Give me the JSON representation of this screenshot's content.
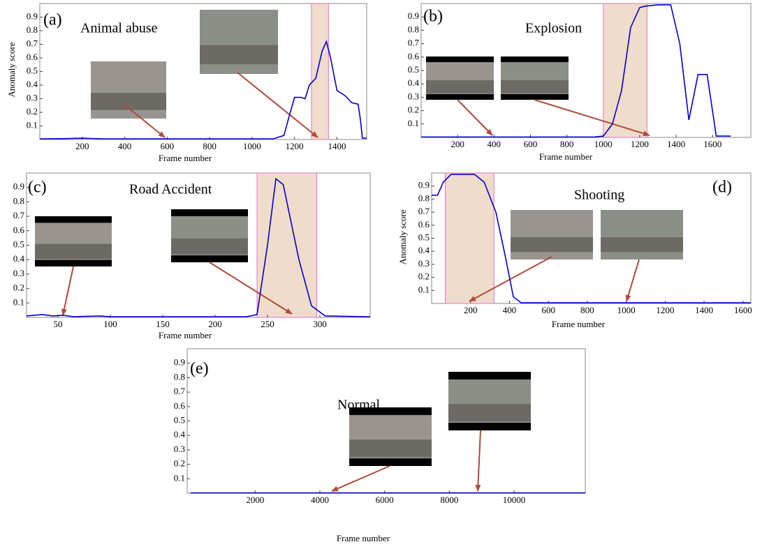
{
  "chart_data": [
    {
      "type": "line",
      "panel_label": "(a)",
      "title": "Animal abuse",
      "xlabel": "Frame number",
      "ylabel": "Anomaly score",
      "color": "#0000cc",
      "shade_color": "#f0dccb",
      "shade_edge": "#e070d0",
      "shaded_range": [
        1280,
        1360
      ],
      "x": [
        0,
        100,
        200,
        300,
        1100,
        1150,
        1180,
        1200,
        1230,
        1250,
        1270,
        1300,
        1330,
        1350,
        1370,
        1400,
        1440,
        1470,
        1500,
        1510,
        1520,
        1540
      ],
      "values": [
        0.005,
        0.006,
        0.01,
        0.005,
        0.005,
        0.03,
        0.2,
        0.31,
        0.31,
        0.3,
        0.4,
        0.45,
        0.65,
        0.72,
        0.6,
        0.36,
        0.32,
        0.27,
        0.26,
        0.15,
        0.01,
        0.01
      ],
      "xlim": [
        0,
        1540
      ],
      "ylim": [
        0,
        1
      ],
      "xticks": [
        200,
        400,
        600,
        800,
        1000,
        1200,
        1400
      ],
      "yticks": [
        0.1,
        0.2,
        0.3,
        0.4,
        0.5,
        0.6,
        0.7,
        0.8,
        0.9
      ]
    },
    {
      "type": "line",
      "panel_label": "(b)",
      "title": "Explosion",
      "xlabel": "Frame number",
      "color": "#0000cc",
      "shade_color": "#f0dccb",
      "shade_edge": "#e070d0",
      "shaded_range": [
        1000,
        1240
      ],
      "x": [
        0,
        950,
        1000,
        1050,
        1100,
        1150,
        1200,
        1230,
        1300,
        1370,
        1420,
        1470,
        1520,
        1570,
        1620,
        1700
      ],
      "values": [
        0.003,
        0.003,
        0.01,
        0.1,
        0.35,
        0.82,
        0.97,
        0.98,
        0.99,
        0.99,
        0.7,
        0.13,
        0.47,
        0.47,
        0.01,
        0.01
      ],
      "xlim": [
        0,
        1810
      ],
      "ylim": [
        0,
        1
      ],
      "xticks": [
        200,
        400,
        600,
        800,
        1000,
        1200,
        1400,
        1600
      ],
      "yticks": [
        0.1,
        0.2,
        0.3,
        0.4,
        0.5,
        0.6,
        0.7,
        0.8,
        0.9
      ]
    },
    {
      "type": "line",
      "panel_label": "(c)",
      "title": "Road Accident",
      "xlabel": "Frame number",
      "color": "#0000cc",
      "shade_color": "#f0dccb",
      "shade_edge": "#e070d0",
      "shaded_range": [
        240,
        297
      ],
      "x": [
        20,
        35,
        45,
        55,
        65,
        90,
        100,
        230,
        240,
        250,
        258,
        265,
        280,
        292,
        305,
        348
      ],
      "values": [
        0.01,
        0.02,
        0.01,
        0.015,
        0.005,
        0.01,
        0.005,
        0.005,
        0.02,
        0.5,
        0.96,
        0.92,
        0.4,
        0.08,
        0.01,
        0.005
      ],
      "xlim": [
        20,
        348
      ],
      "ylim": [
        0,
        1
      ],
      "xticks": [
        50,
        100,
        150,
        200,
        250,
        300
      ],
      "yticks": [
        0.1,
        0.2,
        0.3,
        0.4,
        0.5,
        0.6,
        0.7,
        0.8,
        0.9
      ]
    },
    {
      "type": "line",
      "panel_label": "(d)",
      "title": "Shooting",
      "xlabel": "Frame number",
      "ylabel": "Anomaly score",
      "color": "#0000cc",
      "shade_color": "#f0dccb",
      "shade_edge": "#e070d0",
      "shaded_range": [
        70,
        320
      ],
      "x": [
        0,
        30,
        60,
        100,
        220,
        270,
        330,
        380,
        420,
        460,
        1640
      ],
      "values": [
        0.83,
        0.83,
        0.93,
        0.99,
        0.99,
        0.93,
        0.7,
        0.35,
        0.05,
        0.005,
        0.005
      ],
      "xlim": [
        0,
        1640
      ],
      "ylim": [
        0,
        1
      ],
      "xticks": [
        200,
        400,
        600,
        800,
        1000,
        1200,
        1400,
        1600
      ],
      "yticks": [
        0.1,
        0.2,
        0.3,
        0.4,
        0.5,
        0.6,
        0.7,
        0.8,
        0.9
      ]
    },
    {
      "type": "line",
      "panel_label": "(e)",
      "title": "Normal",
      "xlabel": "Frame number",
      "color": "#0000cc",
      "x": [
        0,
        12200
      ],
      "values": [
        0.002,
        0.002
      ],
      "xlim": [
        -100,
        12200
      ],
      "ylim": [
        0,
        1
      ],
      "xticks": [
        2000,
        4000,
        6000,
        8000,
        10000
      ],
      "yticks": [
        0.1,
        0.2,
        0.3,
        0.4,
        0.5,
        0.6,
        0.7,
        0.8,
        0.9
      ]
    }
  ]
}
